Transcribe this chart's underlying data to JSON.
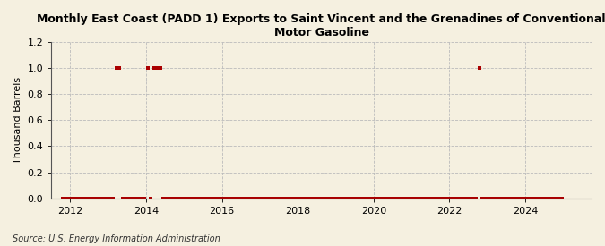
{
  "title": "Monthly East Coast (PADD 1) Exports to Saint Vincent and the Grenadines of Conventional\nMotor Gasoline",
  "ylabel": "Thousand Barrels",
  "source": "Source: U.S. Energy Information Administration",
  "background_color": "#f5f0e0",
  "plot_bg_color": "#f5f0e0",
  "marker_color": "#aa0000",
  "marker": "s",
  "marker_size": 2.5,
  "ylim": [
    0.0,
    1.2
  ],
  "yticks": [
    0.0,
    0.2,
    0.4,
    0.6,
    0.8,
    1.0,
    1.2
  ],
  "xlim_start": 2011.5,
  "xlim_end": 2025.75,
  "xticks": [
    2012,
    2014,
    2016,
    2018,
    2020,
    2022,
    2024
  ],
  "data": {
    "2011-10": 0,
    "2011-11": 0,
    "2011-12": 0,
    "2012-01": 0,
    "2012-02": 0,
    "2012-03": 0,
    "2012-04": 0,
    "2012-05": 0,
    "2012-06": 0,
    "2012-07": 0,
    "2012-08": 0,
    "2012-09": 0,
    "2012-10": 0,
    "2012-11": 0,
    "2012-12": 0,
    "2013-01": 0,
    "2013-02": 0,
    "2013-03": 1,
    "2013-04": 1,
    "2013-05": 0,
    "2013-06": 0,
    "2013-07": 0,
    "2013-08": 0,
    "2013-09": 0,
    "2013-10": 0,
    "2013-11": 0,
    "2013-12": 0,
    "2014-01": 1,
    "2014-02": 0,
    "2014-03": 1,
    "2014-04": 1,
    "2014-05": 1,
    "2014-06": 0,
    "2014-07": 0,
    "2014-08": 0,
    "2014-09": 0,
    "2014-10": 0,
    "2014-11": 0,
    "2014-12": 0,
    "2015-01": 0,
    "2015-02": 0,
    "2015-03": 0,
    "2015-04": 0,
    "2015-05": 0,
    "2015-06": 0,
    "2015-07": 0,
    "2015-08": 0,
    "2015-09": 0,
    "2015-10": 0,
    "2015-11": 0,
    "2015-12": 0,
    "2016-01": 0,
    "2016-02": 0,
    "2016-03": 0,
    "2016-04": 0,
    "2016-05": 0,
    "2016-06": 0,
    "2016-07": 0,
    "2016-08": 0,
    "2016-09": 0,
    "2016-10": 0,
    "2016-11": 0,
    "2016-12": 0,
    "2017-01": 0,
    "2017-02": 0,
    "2017-03": 0,
    "2017-04": 0,
    "2017-05": 0,
    "2017-06": 0,
    "2017-07": 0,
    "2017-08": 0,
    "2017-09": 0,
    "2017-10": 0,
    "2017-11": 0,
    "2017-12": 0,
    "2018-01": 0,
    "2018-02": 0,
    "2018-03": 0,
    "2018-04": 0,
    "2018-05": 0,
    "2018-06": 0,
    "2018-07": 0,
    "2018-08": 0,
    "2018-09": 0,
    "2018-10": 0,
    "2018-11": 0,
    "2018-12": 0,
    "2019-01": 0,
    "2019-02": 0,
    "2019-03": 0,
    "2019-04": 0,
    "2019-05": 0,
    "2019-06": 0,
    "2019-07": 0,
    "2019-08": 0,
    "2019-09": 0,
    "2019-10": 0,
    "2019-11": 0,
    "2019-12": 0,
    "2020-01": 0,
    "2020-02": 0,
    "2020-03": 0,
    "2020-04": 0,
    "2020-05": 0,
    "2020-06": 0,
    "2020-07": 0,
    "2020-08": 0,
    "2020-09": 0,
    "2020-10": 0,
    "2020-11": 0,
    "2020-12": 0,
    "2021-01": 0,
    "2021-02": 0,
    "2021-03": 0,
    "2021-04": 0,
    "2021-05": 0,
    "2021-06": 0,
    "2021-07": 0,
    "2021-08": 0,
    "2021-09": 0,
    "2021-10": 0,
    "2021-11": 0,
    "2021-12": 0,
    "2022-01": 0,
    "2022-02": 0,
    "2022-03": 0,
    "2022-04": 0,
    "2022-05": 0,
    "2022-06": 0,
    "2022-07": 0,
    "2022-08": 0,
    "2022-09": 0,
    "2022-10": 1,
    "2022-11": 0,
    "2022-12": 0,
    "2023-01": 0,
    "2023-02": 0,
    "2023-03": 0,
    "2023-04": 0,
    "2023-05": 0,
    "2023-06": 0,
    "2023-07": 0,
    "2023-08": 0,
    "2023-09": 0,
    "2023-10": 0,
    "2023-11": 0,
    "2023-12": 0,
    "2024-01": 0,
    "2024-02": 0,
    "2024-03": 0,
    "2024-04": 0,
    "2024-05": 0,
    "2024-06": 0,
    "2024-07": 0,
    "2024-08": 0,
    "2024-09": 0,
    "2024-10": 0,
    "2024-11": 0,
    "2024-12": 0
  }
}
